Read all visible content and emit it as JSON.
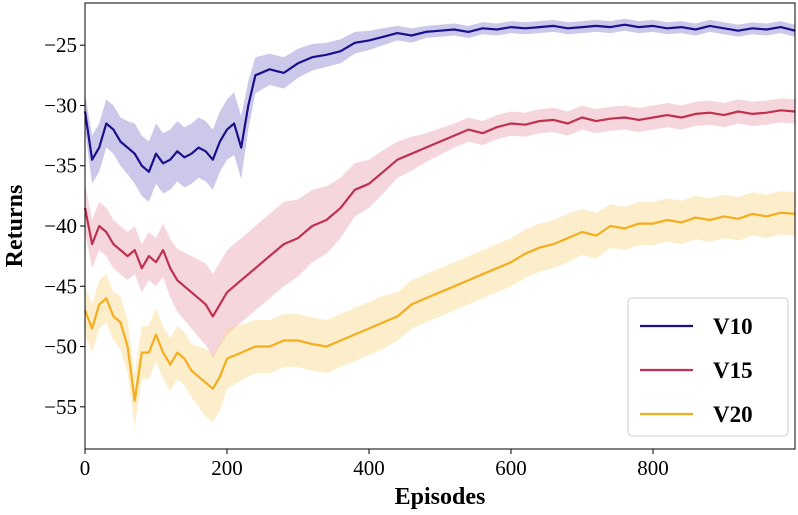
{
  "chart_data": {
    "type": "line",
    "xlabel": "Episodes",
    "ylabel": "Returns",
    "xlim": [
      0,
      1000
    ],
    "ylim": [
      -58.5,
      -21.5
    ],
    "xticks": [
      0,
      200,
      400,
      600,
      800
    ],
    "yticks": [
      -55,
      -50,
      -45,
      -40,
      -35,
      -30,
      -25
    ],
    "xtick_labels": [
      "0",
      "200",
      "400",
      "600",
      "800"
    ],
    "ytick_labels": [
      "−55",
      "−50",
      "−45",
      "−40",
      "−35",
      "−30",
      "−25"
    ],
    "grid": false,
    "legend_position": "bottom-right",
    "series": [
      {
        "name": "V10",
        "color": "#1a0f8c",
        "band_color": "#8f86cf",
        "x": [
          0,
          10,
          20,
          30,
          40,
          50,
          60,
          70,
          80,
          90,
          100,
          110,
          120,
          130,
          140,
          150,
          160,
          170,
          180,
          190,
          200,
          210,
          220,
          230,
          240,
          260,
          280,
          300,
          320,
          340,
          360,
          380,
          400,
          420,
          440,
          460,
          480,
          500,
          520,
          540,
          560,
          580,
          600,
          620,
          640,
          660,
          680,
          700,
          720,
          740,
          760,
          780,
          800,
          820,
          840,
          860,
          880,
          900,
          920,
          940,
          960,
          980,
          1000
        ],
        "y": [
          -30.5,
          -34.5,
          -33.5,
          -31.5,
          -32.0,
          -33.0,
          -33.5,
          -34.0,
          -35.0,
          -35.5,
          -34.0,
          -34.8,
          -34.5,
          -33.8,
          -34.3,
          -34.0,
          -33.5,
          -33.8,
          -34.5,
          -33.0,
          -32.0,
          -31.5,
          -33.5,
          -30.0,
          -27.5,
          -27.0,
          -27.3,
          -26.5,
          -26.0,
          -25.8,
          -25.5,
          -24.8,
          -24.6,
          -24.3,
          -24.0,
          -24.2,
          -23.9,
          -23.8,
          -23.7,
          -23.9,
          -23.6,
          -23.7,
          -23.5,
          -23.6,
          -23.5,
          -23.4,
          -23.6,
          -23.5,
          -23.4,
          -23.5,
          -23.3,
          -23.5,
          -23.4,
          -23.6,
          -23.5,
          -23.7,
          -23.4,
          -23.6,
          -23.8,
          -23.6,
          -23.7,
          -23.5,
          -23.8
        ],
        "band_width": [
          1.5,
          2.0,
          2.0,
          2.0,
          2.0,
          2.0,
          2.2,
          2.5,
          2.5,
          2.5,
          2.5,
          2.5,
          2.5,
          2.5,
          2.5,
          2.5,
          2.5,
          2.5,
          2.5,
          2.5,
          2.5,
          2.6,
          2.6,
          2.0,
          1.5,
          1.3,
          1.3,
          1.2,
          1.1,
          1.0,
          1.0,
          0.9,
          0.8,
          0.7,
          0.6,
          0.6,
          0.5,
          0.5,
          0.5,
          0.5,
          0.5,
          0.5,
          0.5,
          0.5,
          0.5,
          0.5,
          0.5,
          0.5,
          0.5,
          0.5,
          0.5,
          0.5,
          0.5,
          0.5,
          0.5,
          0.5,
          0.5,
          0.5,
          0.5,
          0.5,
          0.5,
          0.5,
          0.5
        ]
      },
      {
        "name": "V15",
        "color": "#c0304f",
        "band_color": "#e8a3b1",
        "x": [
          0,
          10,
          20,
          30,
          40,
          50,
          60,
          70,
          80,
          90,
          100,
          110,
          120,
          130,
          140,
          150,
          160,
          170,
          180,
          190,
          200,
          220,
          240,
          260,
          280,
          300,
          320,
          340,
          360,
          380,
          400,
          420,
          440,
          460,
          480,
          500,
          520,
          540,
          560,
          580,
          600,
          620,
          640,
          660,
          680,
          700,
          720,
          740,
          760,
          780,
          800,
          820,
          840,
          860,
          880,
          900,
          920,
          940,
          960,
          980,
          1000
        ],
        "y": [
          -38.5,
          -41.5,
          -40.0,
          -40.5,
          -41.5,
          -42.0,
          -42.5,
          -42.0,
          -43.5,
          -42.5,
          -43.0,
          -42.0,
          -43.5,
          -44.5,
          -45.0,
          -45.5,
          -46.0,
          -46.5,
          -47.5,
          -46.5,
          -45.5,
          -44.5,
          -43.5,
          -42.5,
          -41.5,
          -41.0,
          -40.0,
          -39.5,
          -38.5,
          -37.0,
          -36.5,
          -35.5,
          -34.5,
          -34.0,
          -33.5,
          -33.0,
          -32.5,
          -32.0,
          -32.3,
          -31.8,
          -31.5,
          -31.6,
          -31.3,
          -31.2,
          -31.5,
          -31.0,
          -31.3,
          -31.1,
          -31.0,
          -31.2,
          -31.0,
          -30.8,
          -31.0,
          -30.7,
          -30.6,
          -30.8,
          -30.5,
          -30.7,
          -30.6,
          -30.4,
          -30.5
        ],
        "band_width": [
          2.0,
          2.0,
          2.0,
          2.0,
          2.0,
          2.0,
          2.0,
          2.0,
          2.0,
          2.0,
          2.0,
          2.2,
          2.4,
          2.6,
          2.8,
          3.0,
          3.2,
          3.4,
          3.5,
          3.5,
          3.5,
          3.5,
          3.5,
          3.5,
          3.5,
          3.2,
          3.0,
          2.8,
          2.5,
          2.2,
          2.0,
          1.8,
          1.5,
          1.4,
          1.2,
          1.1,
          1.0,
          1.0,
          1.0,
          1.0,
          1.0,
          1.0,
          1.0,
          1.0,
          1.0,
          1.0,
          1.0,
          1.0,
          1.0,
          1.0,
          1.0,
          1.0,
          1.0,
          1.0,
          1.0,
          1.0,
          1.0,
          1.0,
          1.0,
          1.0,
          1.0
        ]
      },
      {
        "name": "V20",
        "color": "#f5ac1d",
        "band_color": "#fbd98c",
        "x": [
          0,
          10,
          20,
          30,
          40,
          50,
          60,
          70,
          80,
          90,
          100,
          110,
          120,
          130,
          140,
          150,
          160,
          170,
          180,
          190,
          200,
          220,
          240,
          260,
          280,
          300,
          320,
          340,
          360,
          380,
          400,
          420,
          440,
          460,
          480,
          500,
          520,
          540,
          560,
          580,
          600,
          620,
          640,
          660,
          680,
          700,
          720,
          740,
          760,
          780,
          800,
          820,
          840,
          860,
          880,
          900,
          920,
          940,
          960,
          980,
          1000
        ],
        "y": [
          -47.0,
          -48.5,
          -46.5,
          -46.0,
          -47.5,
          -48.0,
          -50.0,
          -54.5,
          -50.5,
          -50.5,
          -49.0,
          -50.5,
          -51.5,
          -50.5,
          -51.0,
          -52.0,
          -52.5,
          -53.0,
          -53.5,
          -52.5,
          -51.0,
          -50.5,
          -50.0,
          -50.0,
          -49.5,
          -49.5,
          -49.8,
          -50.0,
          -49.5,
          -49.0,
          -48.5,
          -48.0,
          -47.5,
          -46.5,
          -46.0,
          -45.5,
          -45.0,
          -44.5,
          -44.0,
          -43.5,
          -43.0,
          -42.3,
          -41.8,
          -41.5,
          -41.0,
          -40.5,
          -40.8,
          -40.0,
          -40.2,
          -39.8,
          -39.8,
          -39.5,
          -39.7,
          -39.3,
          -39.5,
          -39.2,
          -39.4,
          -39.0,
          -39.2,
          -38.9,
          -39.0
        ],
        "band_width": [
          2.0,
          2.0,
          2.0,
          2.0,
          2.0,
          2.2,
          2.2,
          2.2,
          2.2,
          2.2,
          2.2,
          2.2,
          2.2,
          2.2,
          2.2,
          2.2,
          2.5,
          2.8,
          2.8,
          2.8,
          2.5,
          2.3,
          2.2,
          2.2,
          2.2,
          2.2,
          2.2,
          2.2,
          2.2,
          2.2,
          2.2,
          2.2,
          2.0,
          2.0,
          2.0,
          2.0,
          2.0,
          2.0,
          2.0,
          2.0,
          2.0,
          2.0,
          2.0,
          2.0,
          2.0,
          1.9,
          1.9,
          1.8,
          1.8,
          1.8,
          1.8,
          1.8,
          1.8,
          1.8,
          1.8,
          1.8,
          1.8,
          1.8,
          1.8,
          1.8,
          1.8
        ]
      }
    ]
  }
}
